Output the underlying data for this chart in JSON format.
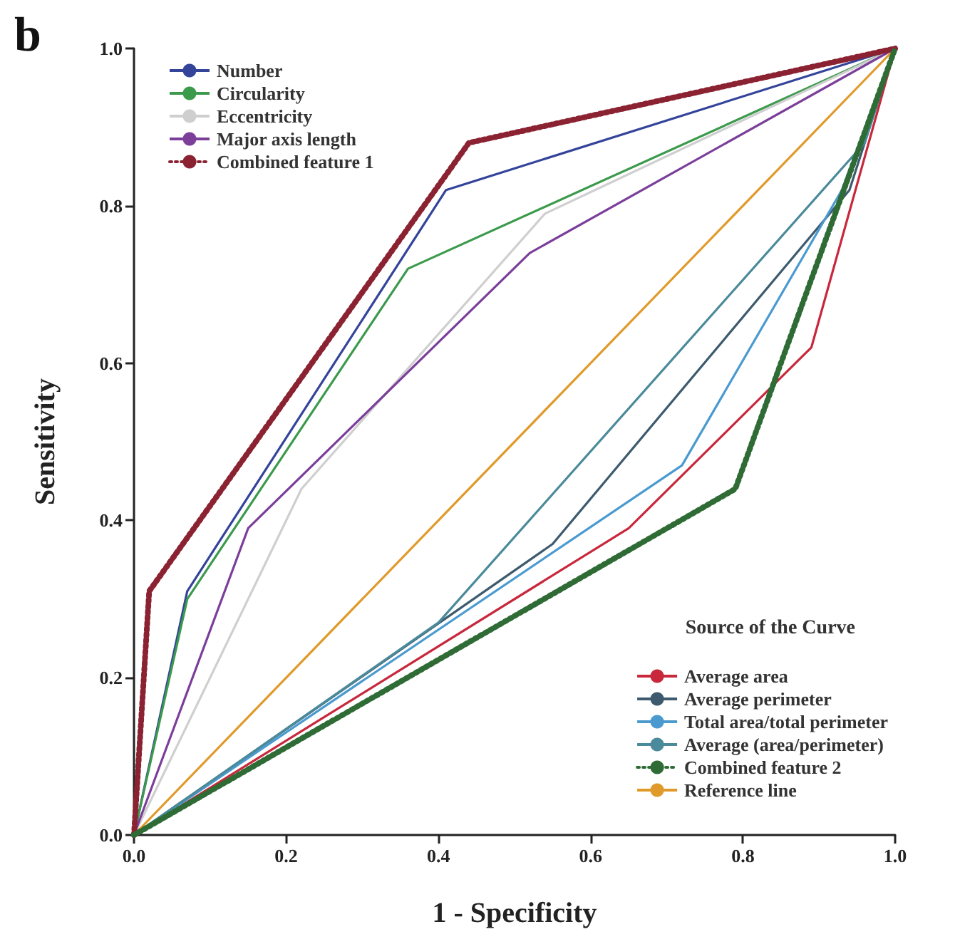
{
  "chart_data": {
    "type": "line",
    "xlabel": "1 - Specificity",
    "ylabel": "Sensitivity",
    "annotations": [
      "b"
    ],
    "legend": "top left",
    "legend_title": "Source of the Curve",
    "marker": "none",
    "grid": false,
    "xlim": [
      0,
      1
    ],
    "ylim": [
      0,
      1
    ],
    "xticks": [
      {
        "value": 0,
        "label": "0.0"
      },
      {
        "value": 0.2,
        "label": "0.2"
      },
      {
        "value": 0.4,
        "label": "0.4"
      },
      {
        "value": 0.6,
        "label": "0.6"
      },
      {
        "value": 0.8,
        "label": "0.8"
      },
      {
        "value": 1,
        "label": "1.0"
      }
    ],
    "yticks": [
      {
        "value": 0,
        "label": "0.0"
      },
      {
        "value": 0.2,
        "label": "0.2"
      },
      {
        "value": 0.4,
        "label": "0.4"
      },
      {
        "value": 0.6,
        "label": "0.6"
      },
      {
        "value": 0.8,
        "label": "0.8"
      },
      {
        "value": 1,
        "label": "1.0"
      }
    ],
    "series": [
      {
        "name": "Number",
        "color": "#34449a",
        "x": [
          0,
          0.07,
          0.41,
          1
        ],
        "values": [
          0,
          0.31,
          0.82,
          1
        ]
      },
      {
        "name": "Circularity",
        "color": "#3c9a4c",
        "x": [
          0,
          0.07,
          0.36,
          1
        ],
        "values": [
          0,
          0.3,
          0.72,
          1
        ]
      },
      {
        "name": "Eccentricity",
        "color": "#cfcfcf",
        "x": [
          0,
          0.22,
          0.54,
          1
        ],
        "values": [
          0,
          0.44,
          0.79,
          1
        ]
      },
      {
        "name": "Major axis length",
        "color": "#7b3f9a",
        "x": [
          0,
          0.15,
          0.52,
          1
        ],
        "values": [
          0,
          0.39,
          0.74,
          1
        ]
      },
      {
        "name": "Combined feature 1",
        "color": "#8b2232",
        "line_style": "dotted",
        "x": [
          0,
          0.02,
          0.44,
          1
        ],
        "values": [
          0,
          0.31,
          0.88,
          1
        ]
      },
      {
        "name": "Average area",
        "color": "#c8283c",
        "x": [
          0,
          0.65,
          0.89,
          1
        ],
        "values": [
          0,
          0.39,
          0.62,
          1
        ]
      },
      {
        "name": "Average perimeter",
        "color": "#3d5a6e",
        "x": [
          0,
          0.55,
          0.94,
          1
        ],
        "values": [
          0,
          0.37,
          0.82,
          1
        ]
      },
      {
        "name": "Total area/total perimeter",
        "color": "#4a9ad0",
        "x": [
          0,
          0.72,
          0.93,
          1
        ],
        "values": [
          0,
          0.47,
          0.82,
          1
        ]
      },
      {
        "name": "Average (area/perimeter)",
        "color": "#4a8a9a",
        "x": [
          0,
          0.4,
          0.96,
          1
        ],
        "values": [
          0,
          0.27,
          0.88,
          1
        ]
      },
      {
        "name": "Combined feature 2",
        "color": "#2e6b35",
        "line_style": "dotted",
        "x": [
          0,
          0.79,
          1
        ],
        "values": [
          0,
          0.44,
          1
        ]
      },
      {
        "name": "Reference line",
        "color": "#e09a2a",
        "x": [
          0,
          1
        ],
        "values": [
          0,
          1
        ]
      }
    ]
  }
}
